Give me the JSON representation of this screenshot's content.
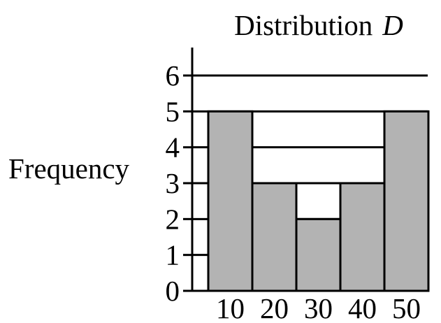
{
  "chart_data": {
    "type": "bar",
    "title": "Distribution",
    "title_variable": "D",
    "ylabel": "Frequency",
    "xlabel": "",
    "categories": [
      "10",
      "20",
      "30",
      "40",
      "50"
    ],
    "values": [
      5,
      3,
      2,
      3,
      5
    ],
    "ylim": [
      0,
      6
    ],
    "yticks": [
      "0",
      "1",
      "2",
      "3",
      "4",
      "5",
      "6"
    ],
    "grid": true,
    "bar_color": "#b3b3b3",
    "line_color": "#000000",
    "background": "#ffffff"
  }
}
